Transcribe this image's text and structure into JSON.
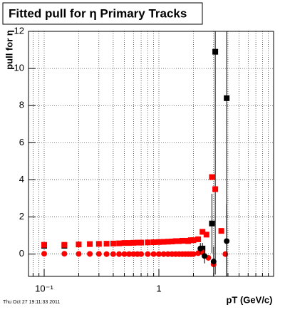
{
  "chart_data": {
    "type": "scatter",
    "title": "Fitted pull for η  Primary Tracks",
    "x_label": "pT (GeV/c)",
    "y_label": "pull for η",
    "footer": "Thu Oct 27 19:11:33 2011",
    "log_x": true,
    "grid": true,
    "xlim": [
      0.073,
      10
    ],
    "ylim": [
      -1.2,
      12
    ],
    "xticks": [
      {
        "value": 0.1,
        "label": "10⁻¹"
      },
      1
    ],
    "xminor_ticks": [
      0.08,
      0.09,
      0.2,
      0.3,
      0.4,
      0.5,
      0.6,
      0.7,
      0.8,
      0.9,
      2,
      3,
      4,
      5,
      6,
      7,
      8,
      9
    ],
    "yticks": [
      0,
      2,
      4,
      6,
      8,
      10,
      12
    ],
    "series": [
      {
        "color": "#000000",
        "marker": "square",
        "x": [
          0.1,
          0.15,
          2.4,
          2.9,
          3.1,
          3.9
        ],
        "values": [
          0.45,
          0.45,
          0.3,
          1.65,
          10.9,
          8.4
        ],
        "errors": [
          0.05,
          0.05,
          0.3,
          1.6,
          12,
          12
        ]
      },
      {
        "color": "#ff0000",
        "marker": "square",
        "x": [
          0.1,
          0.15,
          0.2,
          0.25,
          0.3,
          0.35,
          0.4,
          0.45,
          0.5,
          0.55,
          0.6,
          0.65,
          0.7,
          0.8,
          0.9,
          1.0,
          1.1,
          1.2,
          1.3,
          1.4,
          1.5,
          1.6,
          1.7,
          1.8,
          1.9,
          2.0,
          2.2,
          2.4,
          2.6,
          2.9,
          3.1,
          3.5
        ],
        "values": [
          0.5,
          0.5,
          0.52,
          0.54,
          0.55,
          0.56,
          0.57,
          0.58,
          0.6,
          0.6,
          0.61,
          0.62,
          0.62,
          0.63,
          0.64,
          0.65,
          0.66,
          0.67,
          0.68,
          0.7,
          0.7,
          0.72,
          0.72,
          0.7,
          0.75,
          0.75,
          0.8,
          1.2,
          1.05,
          4.15,
          3.5,
          1.25
        ]
      },
      {
        "color": "#ff0000",
        "marker": "circle",
        "x": [
          0.1,
          0.15,
          0.2,
          0.25,
          0.3,
          0.35,
          0.4,
          0.45,
          0.5,
          0.55,
          0.6,
          0.65,
          0.7,
          0.8,
          0.9,
          1.0,
          1.1,
          1.2,
          1.3,
          1.4,
          1.5,
          1.6,
          1.7,
          1.8,
          1.9,
          2.0,
          2.2,
          2.4,
          2.7,
          3.0,
          3.8
        ],
        "values": [
          0.02,
          0.02,
          0.01,
          0.01,
          0.01,
          0.0,
          0.0,
          0.0,
          0.0,
          0.0,
          0.0,
          0.0,
          0.0,
          0.0,
          0.0,
          0.0,
          0.0,
          0.0,
          0.0,
          0.0,
          0.0,
          0.0,
          0.0,
          0.0,
          0.0,
          0.0,
          0.05,
          0.1,
          -0.2,
          -0.55,
          0.0
        ]
      },
      {
        "color": "#000000",
        "marker": "circle",
        "x": [
          2.3,
          2.5,
          3.0,
          3.9
        ],
        "values": [
          0.3,
          -0.1,
          -0.4,
          0.7
        ],
        "errors": [
          0.3,
          0.4,
          0.8,
          2.0
        ]
      }
    ]
  }
}
